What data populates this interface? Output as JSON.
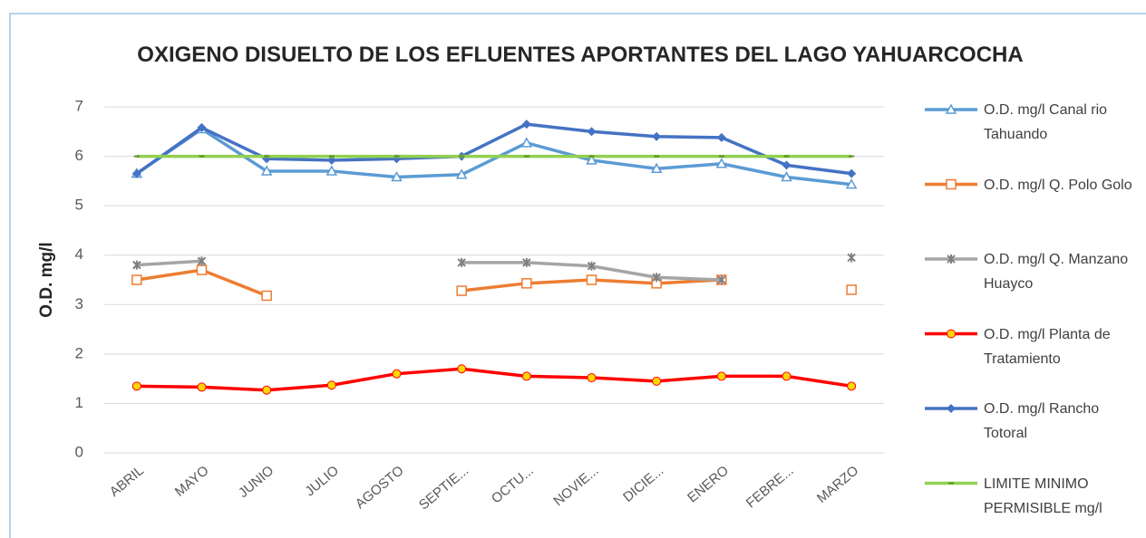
{
  "chart_data": {
    "type": "line",
    "title": "OXIGENO DISUELTO DE LOS EFLUENTES APORTANTES DEL LAGO YAHUARCOCHA",
    "y_label": "O.D. mg/l",
    "categories": [
      "ABRIL",
      "MAYO",
      "JUNIO",
      "JULIO",
      "AGOSTO",
      "SEPTIE...",
      "OCTU...",
      "NOVIE...",
      "DICIE...",
      "ENERO",
      "FEBRE...",
      "MARZO"
    ],
    "ylim": [
      0,
      7
    ],
    "yticks": [
      0,
      1,
      2,
      3,
      4,
      5,
      6,
      7
    ],
    "grid": true,
    "legend": "right",
    "series": [
      {
        "name": "O.D. mg/l Canal rio Tahuando",
        "color": "#5b9bd5",
        "marker": "triangle",
        "values": [
          5.65,
          6.55,
          5.7,
          5.7,
          5.58,
          5.63,
          6.27,
          5.92,
          5.75,
          5.85,
          5.58,
          5.43
        ]
      },
      {
        "name": "O.D. mg/l Q. Polo Golo",
        "color": "#ed7d31",
        "marker": "square",
        "values": [
          3.5,
          3.7,
          3.18,
          null,
          null,
          3.28,
          3.43,
          3.5,
          3.43,
          3.5,
          null,
          3.3
        ]
      },
      {
        "name": "O.D. mg/l Q. Manzano Huayco",
        "color": "#a5a5a5",
        "marker": "cross",
        "values": [
          3.8,
          3.88,
          null,
          null,
          null,
          3.85,
          3.85,
          3.78,
          3.55,
          3.5,
          null,
          3.95
        ]
      },
      {
        "name": "O.D. mg/l Planta de Tratamiento",
        "color": "#ff0000",
        "marker": "circle",
        "values": [
          1.35,
          1.33,
          1.27,
          1.37,
          1.6,
          1.7,
          1.55,
          1.52,
          1.45,
          1.55,
          1.55,
          1.35
        ]
      },
      {
        "name": "O.D. mg/l Rancho Totoral",
        "color": "#4472c4",
        "marker": "diamond",
        "values": [
          5.65,
          6.58,
          5.95,
          5.92,
          5.95,
          6.0,
          6.65,
          6.5,
          6.4,
          6.38,
          5.82,
          5.65
        ]
      },
      {
        "name": "LIMITE MINIMO PERMISIBLE mg/l",
        "color": "#92d050",
        "marker": "dash",
        "values": [
          6,
          6,
          6,
          6,
          6,
          6,
          6,
          6,
          6,
          6,
          6,
          6
        ]
      }
    ]
  }
}
